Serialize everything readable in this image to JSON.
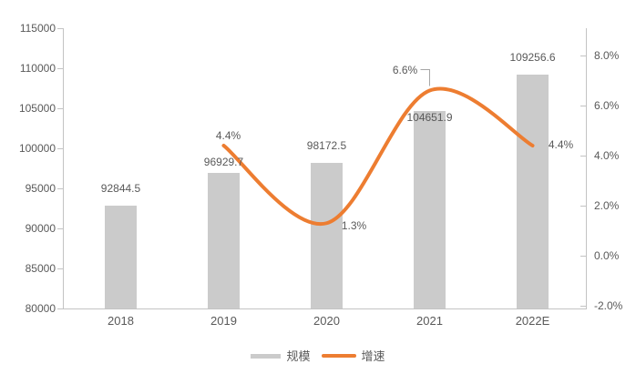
{
  "chart_data": {
    "type": "combo",
    "title": "",
    "categories": [
      "2018",
      "2019",
      "2020",
      "2021",
      "2022E"
    ],
    "series": [
      {
        "name": "规模",
        "type": "bar",
        "axis": "left",
        "values": [
          92844.5,
          96929.7,
          98172.5,
          104651.9,
          109256.6
        ],
        "labels": [
          "92844.5",
          "96929.7",
          "98172.5",
          "104651.9",
          "109256.6"
        ],
        "color": "#CBCBCB"
      },
      {
        "name": "增速",
        "type": "line",
        "axis": "right",
        "smooth": true,
        "values": [
          null,
          4.4,
          1.3,
          6.6,
          4.4
        ],
        "labels": [
          null,
          "4.4%",
          "1.3%",
          "6.6%",
          "4.4%"
        ],
        "color": "#ED7D31"
      }
    ],
    "left_axis": {
      "min": 80000,
      "max": 115000,
      "ticks": [
        {
          "v": 115000,
          "label": "115000"
        },
        {
          "v": 110000,
          "label": "110000"
        },
        {
          "v": 105000,
          "label": "105000"
        },
        {
          "v": 100000,
          "label": "100000"
        },
        {
          "v": 95000,
          "label": "95000"
        },
        {
          "v": 90000,
          "label": "90000"
        },
        {
          "v": 85000,
          "label": "85000"
        },
        {
          "v": 80000,
          "label": "80000"
        }
      ]
    },
    "right_axis": {
      "min": -2.0,
      "ticks": [
        {
          "v": 8,
          "label": "8.0%"
        },
        {
          "v": 6,
          "label": "6.0%"
        },
        {
          "v": 4,
          "label": "4.0%"
        },
        {
          "v": 2,
          "label": "2.0%"
        },
        {
          "v": 0,
          "label": "0.0%"
        },
        {
          "v": -2,
          "label": "-2.0%"
        }
      ]
    },
    "legend": {
      "position": "bottom",
      "items": [
        "规模",
        "增速"
      ]
    },
    "grid": false,
    "colors": {
      "bar": "#CBCBCB",
      "line": "#ED7D31",
      "text": "#595959",
      "axis": "#C3C3C3",
      "leader": "#A6A6A6",
      "background": "#FFFFFF"
    }
  }
}
